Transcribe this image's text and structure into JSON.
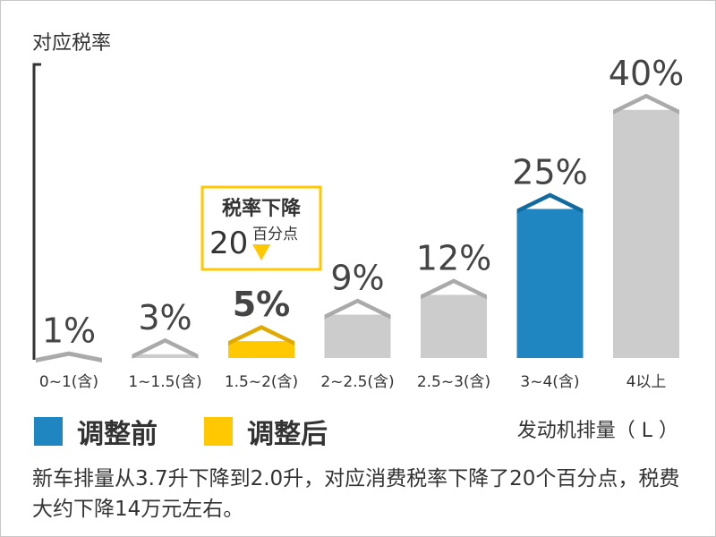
{
  "chart_data": {
    "type": "bar",
    "title": "",
    "ylabel": "对应税率",
    "xlabel": "发动机排量（ L ）",
    "ylim": [
      0,
      42
    ],
    "categories": [
      "0~1(含)",
      "1~1.5(含)",
      "1.5~2(含)",
      "2~2.5(含)",
      "2.5~3(含)",
      "3~4(含)",
      "4以上"
    ],
    "values": [
      1,
      3,
      5,
      9,
      12,
      25,
      40
    ],
    "value_labels": [
      "1%",
      "3%",
      "5%",
      "9%",
      "12%",
      "25%",
      "40%"
    ],
    "bar_colors": [
      "#cccccc",
      "#cccccc",
      "#ffc800",
      "#cccccc",
      "#cccccc",
      "#1f86c1",
      "#cccccc"
    ],
    "bar_cap_colors": [
      "#aaaaaa",
      "#aaaaaa",
      "#e0aa00",
      "#aaaaaa",
      "#aaaaaa",
      "#116aa0",
      "#aaaaaa"
    ],
    "highlight_index": 2,
    "annotation": {
      "title": "税率下降",
      "number": "20",
      "unit": "百分点",
      "color": "#ffc800"
    },
    "legend": [
      {
        "label": "调整前",
        "color": "#1f86c1"
      },
      {
        "label": "调整后",
        "color": "#ffc800"
      }
    ],
    "grid": false
  },
  "caption": "新车排量从3.7升下降到2.0升，对应消费税率下降了20个百分点，税费大约下降14万元左右。"
}
